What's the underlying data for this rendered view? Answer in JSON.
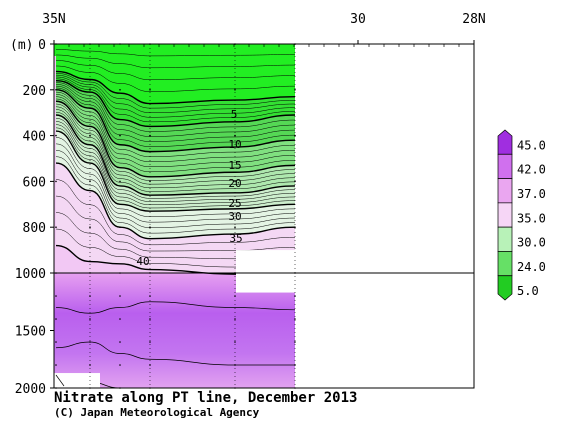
{
  "chart_data": {
    "type": "heatmap",
    "title": "Nitrate along PT line, December 2013",
    "credit": "(C) Japan Meteorological Agency",
    "xlabel": "",
    "ylabel": "(m)",
    "x_ticks": [
      "35N",
      "30",
      "28N"
    ],
    "y_ticks": [
      "0",
      "200",
      "400",
      "600",
      "800",
      "1000",
      "1500",
      "2000"
    ],
    "y_scale": "split: linear 0-1000 m (upper panel), linear 1000-2000 m (lower panel)",
    "legend": {
      "placement": "right",
      "levels": [
        "5.0",
        "24.0",
        "30.0",
        "35.0",
        "37.0",
        "42.0",
        "45.0"
      ],
      "colors": [
        "#22cc22",
        "#66e066",
        "#b8f2b8",
        "#f6d6f6",
        "#eaa6f0",
        "#d070ee",
        "#a02ee0"
      ]
    },
    "contour_labels": [
      "5",
      "10",
      "15",
      "20",
      "25",
      "30",
      "35",
      "40"
    ],
    "contours": [
      {
        "value": 5,
        "depths": [
          120,
          155,
          215,
          260,
          245,
          230
        ]
      },
      {
        "value": 10,
        "depths": [
          160,
          210,
          330,
          360,
          340,
          310
        ]
      },
      {
        "value": 15,
        "depths": [
          200,
          280,
          440,
          470,
          450,
          420
        ]
      },
      {
        "value": 20,
        "depths": [
          250,
          360,
          540,
          580,
          560,
          530
        ]
      },
      {
        "value": 25,
        "depths": [
          310,
          440,
          620,
          660,
          650,
          620
        ]
      },
      {
        "value": 30,
        "depths": [
          380,
          520,
          700,
          730,
          720,
          700
        ]
      },
      {
        "value": 35,
        "depths": [
          520,
          640,
          800,
          850,
          830,
          800
        ]
      },
      {
        "value": 40,
        "depths": [
          880,
          950,
          960,
          985,
          1010,
          1020
        ]
      }
    ],
    "x_domain": {
      "unit": "degrees N",
      "start": 35,
      "end": 28
    },
    "data_extent": {
      "start": 35,
      "end": 31.2
    }
  },
  "colors": {
    "axis": "#000000",
    "background": "#ffffff",
    "green_bright": "#22ee22",
    "purple_mid": "#c266ee",
    "pink_light": "#eaa8f2"
  }
}
